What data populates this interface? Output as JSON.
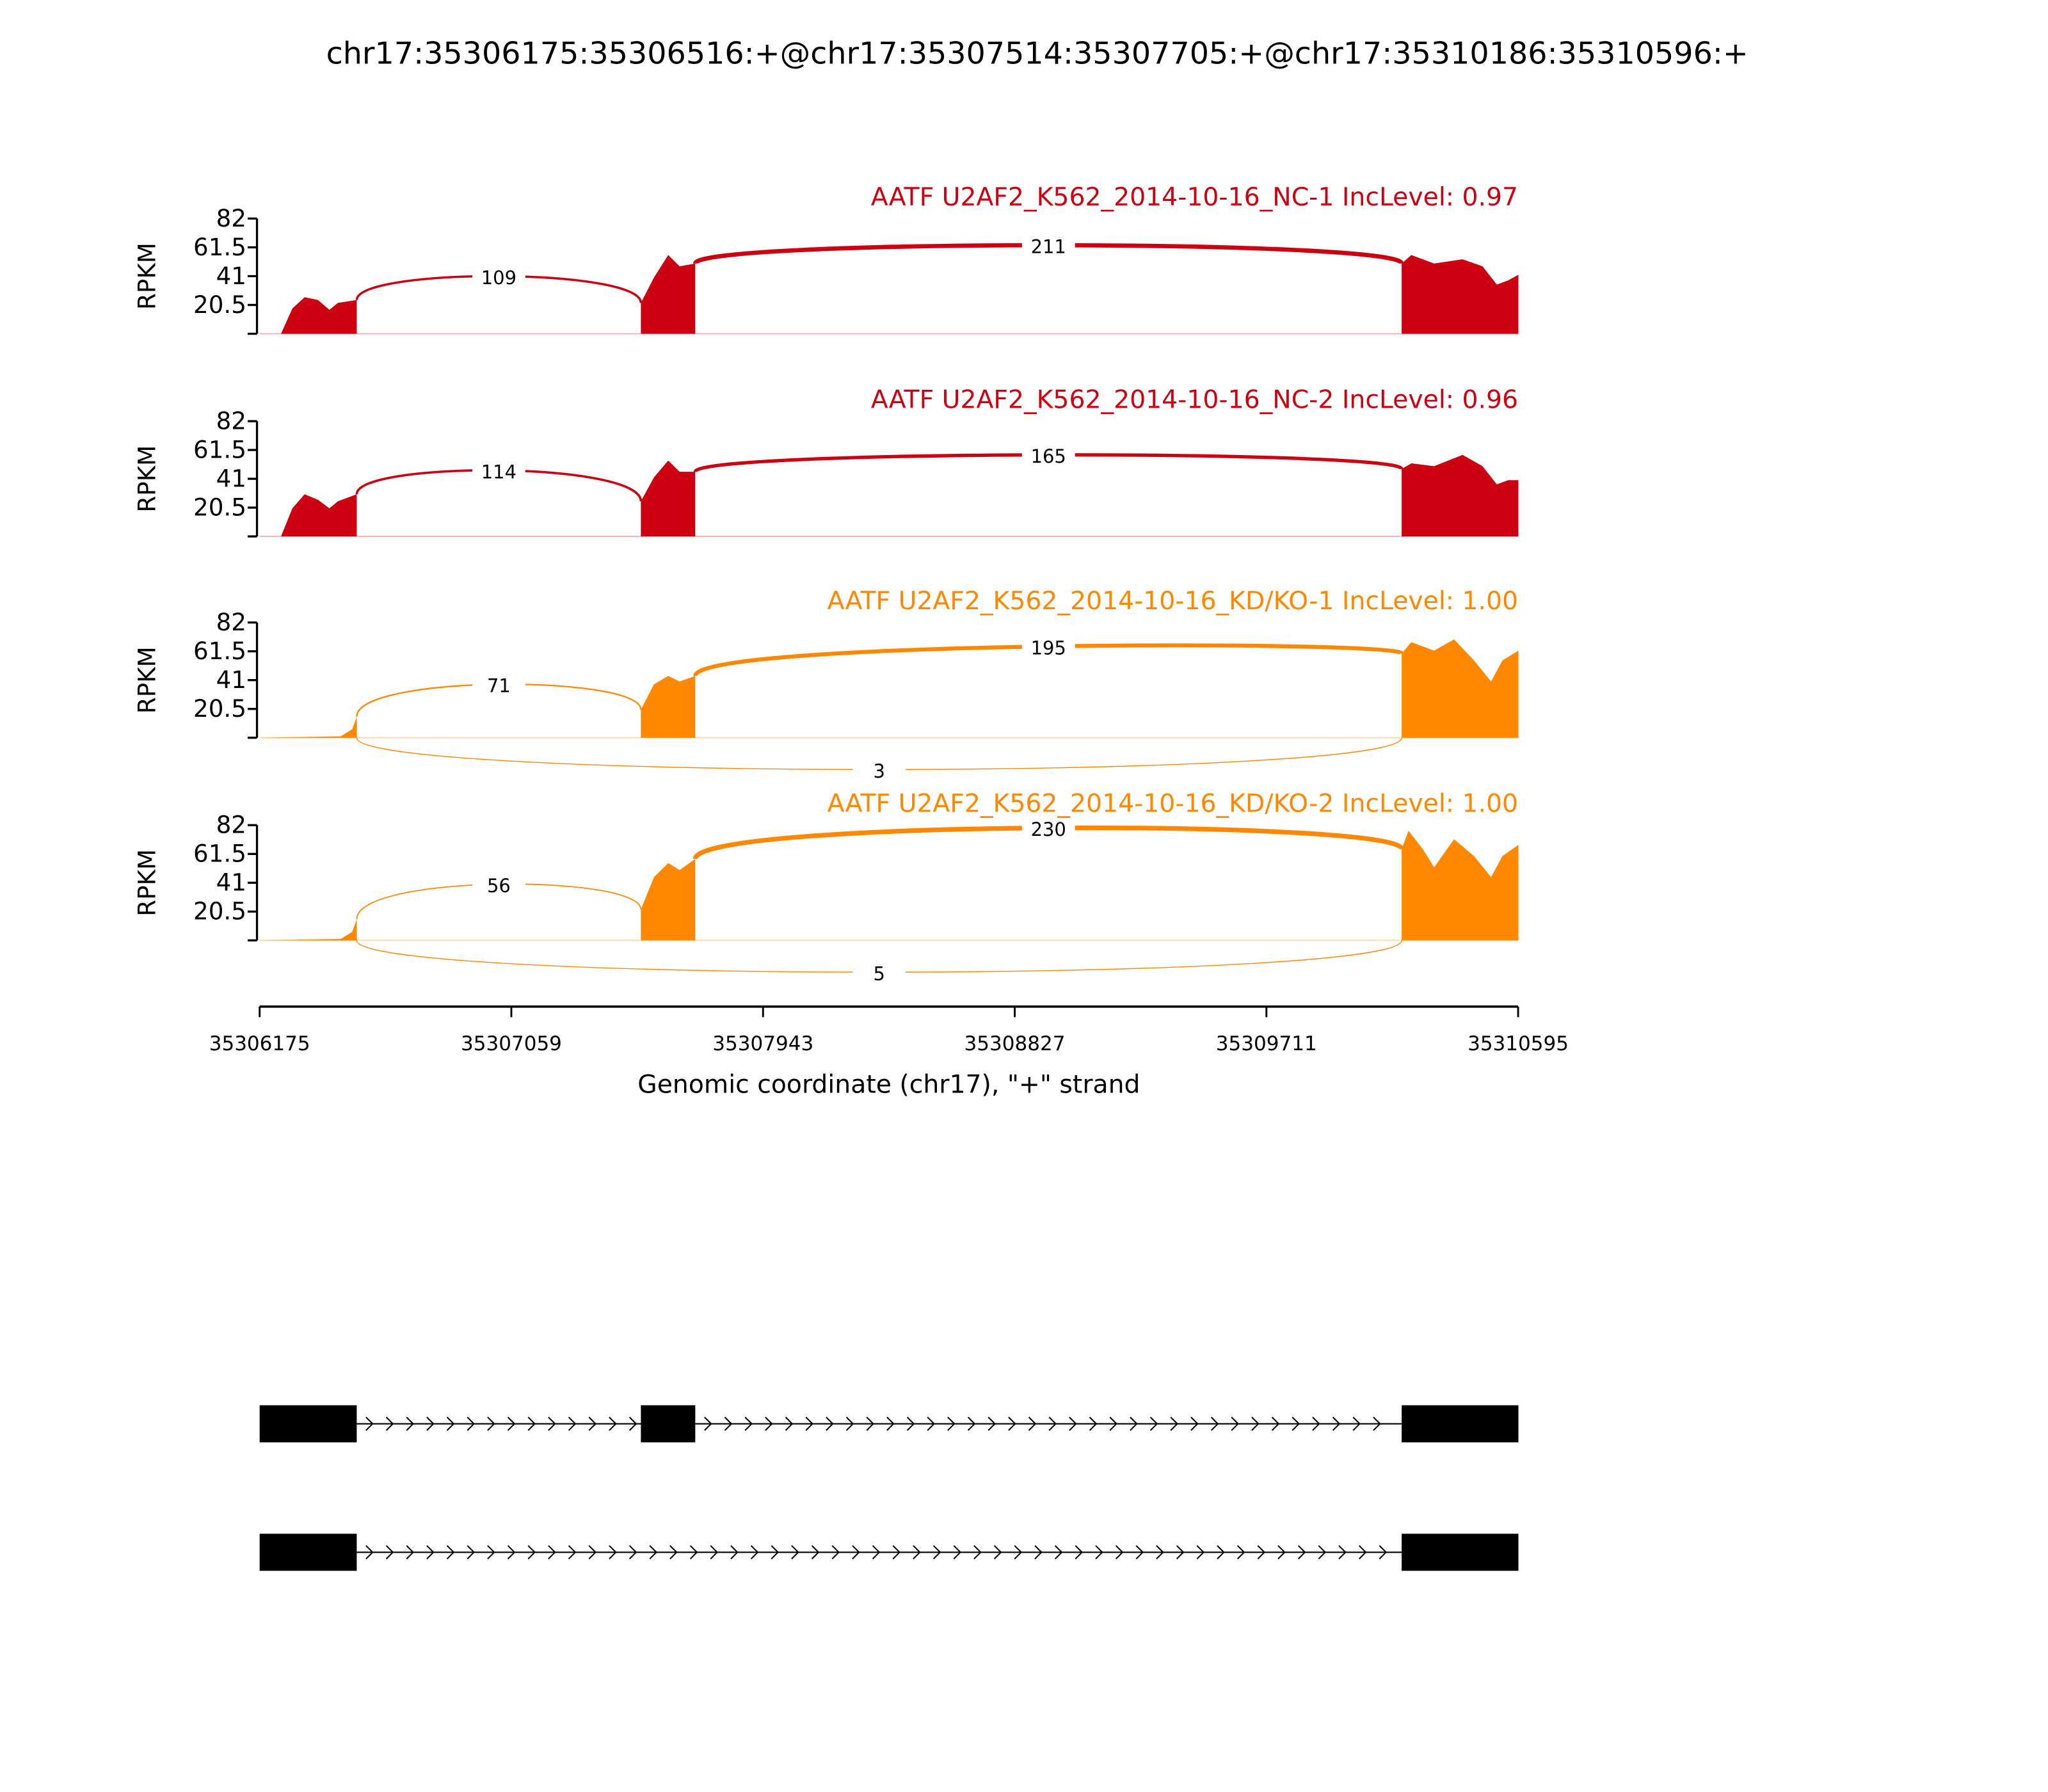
{
  "chart_data": {
    "type": "sashimi",
    "title": "chr17:35306175:35306516:+@chr17:35307514:35307705:+@chr17:35310186:35310596:+",
    "xlabel": "Genomic coordinate (chr17), \"+\" strand",
    "ylabel": "RPKM",
    "xlim": [
      35306175,
      35310595
    ],
    "ylim": [
      0,
      82
    ],
    "xticks": [
      "35306175",
      "35307059",
      "35307943",
      "35308827",
      "35309711",
      "35310595"
    ],
    "xtick_values": [
      35306175,
      35307059,
      35307943,
      35308827,
      35309711,
      35310595
    ],
    "yticks": [
      "20.5",
      "41",
      "61.5",
      "82"
    ],
    "ytick_values": [
      20.5,
      41,
      61.5,
      82
    ],
    "exons": [
      [
        35306175,
        35306516
      ],
      [
        35307514,
        35307705
      ],
      [
        35310186,
        35310596
      ]
    ],
    "isoforms": [
      {
        "exons": [
          0,
          1,
          2
        ]
      },
      {
        "exons": [
          0,
          2
        ]
      }
    ],
    "samples": [
      {
        "label": "AATF U2AF2_K562_2014-10-16_NC-1 IncLevel: 0.97",
        "color": "#cc0011",
        "coverage": [
          [
            35306250,
            0
          ],
          [
            35306290,
            18
          ],
          [
            35306333,
            26
          ],
          [
            35306380,
            24
          ],
          [
            35306420,
            17
          ],
          [
            35306450,
            22
          ],
          [
            35306516,
            24
          ],
          [
            35307514,
            22
          ],
          [
            35307560,
            40
          ],
          [
            35307610,
            56
          ],
          [
            35307650,
            48
          ],
          [
            35307705,
            50
          ],
          [
            35310186,
            50
          ],
          [
            35310220,
            56
          ],
          [
            35310300,
            50
          ],
          [
            35310400,
            53
          ],
          [
            35310470,
            48
          ],
          [
            35310520,
            35
          ],
          [
            35310560,
            38
          ],
          [
            35310596,
            42
          ]
        ],
        "junctions": [
          {
            "count": "109",
            "from": 35306516,
            "to": 35307514,
            "side": "above"
          },
          {
            "count": "211",
            "from": 35307705,
            "to": 35310186,
            "side": "above"
          }
        ]
      },
      {
        "label": "AATF U2AF2_K562_2014-10-16_NC-2 IncLevel: 0.96",
        "color": "#cc0011",
        "coverage": [
          [
            35306250,
            0
          ],
          [
            35306290,
            20
          ],
          [
            35306333,
            30
          ],
          [
            35306380,
            26
          ],
          [
            35306420,
            20
          ],
          [
            35306450,
            25
          ],
          [
            35306516,
            30
          ],
          [
            35307514,
            25
          ],
          [
            35307560,
            42
          ],
          [
            35307610,
            54
          ],
          [
            35307650,
            46
          ],
          [
            35307705,
            46
          ],
          [
            35310186,
            48
          ],
          [
            35310220,
            52
          ],
          [
            35310300,
            50
          ],
          [
            35310400,
            58
          ],
          [
            35310470,
            50
          ],
          [
            35310520,
            37
          ],
          [
            35310560,
            40
          ],
          [
            35310596,
            40
          ]
        ],
        "junctions": [
          {
            "count": "114",
            "from": 35306516,
            "to": 35307514,
            "side": "above"
          },
          {
            "count": "165",
            "from": 35307705,
            "to": 35310186,
            "side": "above"
          }
        ]
      },
      {
        "label": "AATF U2AF2_K562_2014-10-16_KD/KO-1 IncLevel: 1.00",
        "color": "#ff8800",
        "coverage": [
          [
            35306175,
            0
          ],
          [
            35306460,
            1
          ],
          [
            35306500,
            6
          ],
          [
            35306516,
            15
          ],
          [
            35307514,
            20
          ],
          [
            35307560,
            38
          ],
          [
            35307610,
            44
          ],
          [
            35307650,
            40
          ],
          [
            35307705,
            44
          ],
          [
            35310186,
            60
          ],
          [
            35310220,
            68
          ],
          [
            35310300,
            62
          ],
          [
            35310370,
            70
          ],
          [
            35310440,
            55
          ],
          [
            35310500,
            40
          ],
          [
            35310540,
            55
          ],
          [
            35310596,
            62
          ]
        ],
        "junctions": [
          {
            "count": "71",
            "from": 35306516,
            "to": 35307514,
            "side": "above"
          },
          {
            "count": "195",
            "from": 35307705,
            "to": 35310186,
            "side": "above"
          },
          {
            "count": "3",
            "from": 35306516,
            "to": 35310186,
            "side": "below"
          }
        ]
      },
      {
        "label": "AATF U2AF2_K562_2014-10-16_KD/KO-2 IncLevel: 1.00",
        "color": "#ff8800",
        "coverage": [
          [
            35306175,
            0
          ],
          [
            35306460,
            1
          ],
          [
            35306500,
            6
          ],
          [
            35306516,
            15
          ],
          [
            35307514,
            22
          ],
          [
            35307560,
            45
          ],
          [
            35307610,
            55
          ],
          [
            35307650,
            50
          ],
          [
            35307705,
            58
          ],
          [
            35310186,
            65
          ],
          [
            35310210,
            78
          ],
          [
            35310260,
            65
          ],
          [
            35310300,
            52
          ],
          [
            35310370,
            72
          ],
          [
            35310440,
            60
          ],
          [
            35310500,
            45
          ],
          [
            35310540,
            60
          ],
          [
            35310596,
            68
          ]
        ],
        "junctions": [
          {
            "count": "56",
            "from": 35306516,
            "to": 35307514,
            "side": "above"
          },
          {
            "count": "230",
            "from": 35307705,
            "to": 35310186,
            "side": "above"
          },
          {
            "count": "5",
            "from": 35306516,
            "to": 35310186,
            "side": "below"
          }
        ]
      }
    ]
  }
}
